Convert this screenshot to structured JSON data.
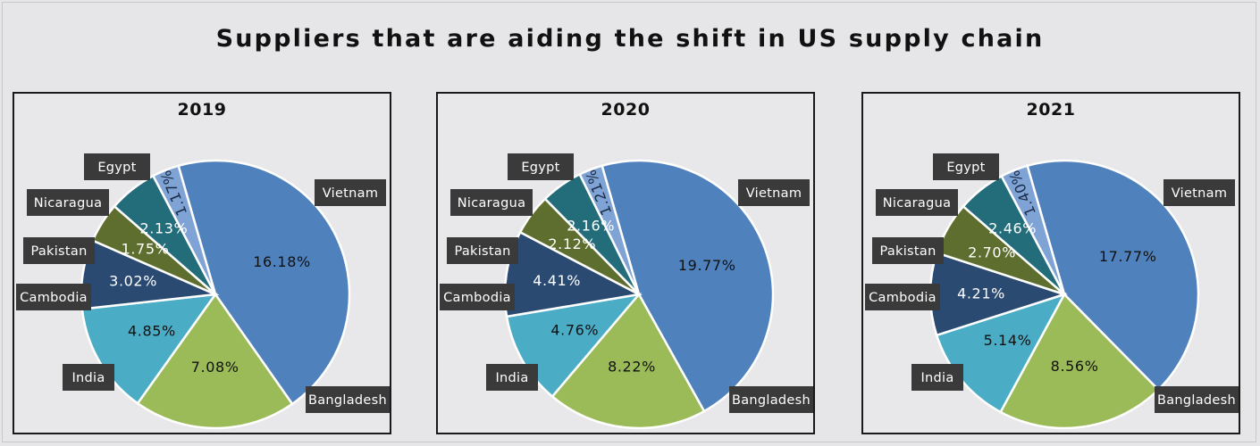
{
  "title": "Suppliers that are aiding the shift in US supply chain",
  "colors": {
    "Vietnam": "#4f81bd",
    "Bangladesh": "#9bbb59",
    "India": "#4bacc6",
    "Cambodia": "#2b4a72",
    "Pakistan": "#5e6e2e",
    "Nicaragua": "#236c7a",
    "Egypt": "#7ea3d4"
  },
  "chart_data": [
    {
      "type": "pie",
      "title": "2019",
      "categories": [
        "Vietnam",
        "Bangladesh",
        "India",
        "Cambodia",
        "Pakistan",
        "Nicaragua",
        "Egypt"
      ],
      "values": [
        16.18,
        7.08,
        4.85,
        3.02,
        1.75,
        2.13,
        1.17
      ],
      "labels": [
        "16.18%",
        "7.08%",
        "4.85%",
        "3.02%",
        "1.75%",
        "2.13%",
        "1.17%"
      ]
    },
    {
      "type": "pie",
      "title": "2020",
      "categories": [
        "Vietnam",
        "Bangladesh",
        "India",
        "Cambodia",
        "Pakistan",
        "Nicaragua",
        "Egypt"
      ],
      "values": [
        19.77,
        8.22,
        4.76,
        4.41,
        2.12,
        2.16,
        1.21
      ],
      "labels": [
        "19.77%",
        "8.22%",
        "4.76%",
        "4.41%",
        "2.12%",
        "2.16%",
        "1.21%"
      ]
    },
    {
      "type": "pie",
      "title": "2021",
      "categories": [
        "Vietnam",
        "Bangladesh",
        "India",
        "Cambodia",
        "Pakistan",
        "Nicaragua",
        "Egypt"
      ],
      "values": [
        17.77,
        8.56,
        5.14,
        4.21,
        2.7,
        2.46,
        1.4
      ],
      "labels": [
        "17.77%",
        "8.56%",
        "5.14%",
        "4.21%",
        "2.70%",
        "2.46%",
        "1.40%"
      ]
    }
  ]
}
